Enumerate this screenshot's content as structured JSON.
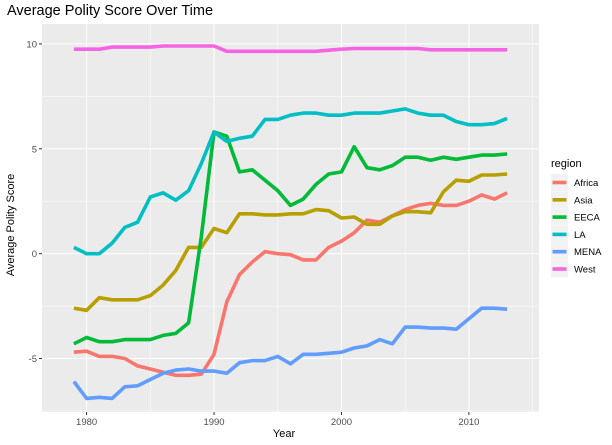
{
  "chart_data": {
    "type": "line",
    "title": "Average Polity Score Over Time",
    "xlabel": "Year",
    "ylabel": "Average Polity Score",
    "xlim": [
      1976.5,
      2015.5
    ],
    "ylim": [
      -7.55,
      10.95
    ],
    "x_ticks": [
      1980,
      1990,
      2000,
      2010
    ],
    "y_ticks": [
      -5,
      0,
      5,
      10
    ],
    "grid": true,
    "legend": {
      "title": "region",
      "position": "right"
    },
    "x": [
      1979,
      1980,
      1981,
      1982,
      1983,
      1984,
      1985,
      1986,
      1987,
      1988,
      1989,
      1990,
      1991,
      1992,
      1993,
      1994,
      1995,
      1996,
      1997,
      1998,
      1999,
      2000,
      2001,
      2002,
      2003,
      2004,
      2005,
      2006,
      2007,
      2008,
      2009,
      2010,
      2011,
      2012,
      2013
    ],
    "series": [
      {
        "name": "Africa",
        "color": "#F8766D",
        "values": [
          -4.7,
          -4.65,
          -4.9,
          -4.9,
          -5.0,
          -5.35,
          -5.5,
          -5.65,
          -5.8,
          -5.8,
          -5.75,
          -4.8,
          -2.3,
          -1.0,
          -0.4,
          0.1,
          0.0,
          -0.05,
          -0.3,
          -0.3,
          0.3,
          0.6,
          1.0,
          1.6,
          1.5,
          1.8,
          2.1,
          2.3,
          2.4,
          2.3,
          2.3,
          2.5,
          2.8,
          2.6,
          2.9
        ]
      },
      {
        "name": "Asia",
        "color": "#B79F00",
        "values": [
          -2.6,
          -2.7,
          -2.1,
          -2.2,
          -2.2,
          -2.2,
          -2.0,
          -1.5,
          -0.8,
          0.3,
          0.3,
          1.2,
          1.0,
          1.9,
          1.9,
          1.85,
          1.85,
          1.9,
          1.9,
          2.1,
          2.05,
          1.7,
          1.75,
          1.4,
          1.4,
          1.8,
          2.0,
          2.0,
          1.95,
          2.95,
          3.5,
          3.45,
          3.75,
          3.75,
          3.8
        ]
      },
      {
        "name": "EECA",
        "color": "#00BA38",
        "values": [
          -4.3,
          -4.0,
          -4.2,
          -4.2,
          -4.1,
          -4.1,
          -4.1,
          -3.9,
          -3.8,
          -3.3,
          0.8,
          5.8,
          5.6,
          3.9,
          4.0,
          3.5,
          3.0,
          2.3,
          2.6,
          3.3,
          3.8,
          3.9,
          5.1,
          4.1,
          4.0,
          4.2,
          4.6,
          4.6,
          4.45,
          4.6,
          4.5,
          4.6,
          4.7,
          4.7,
          4.75
        ]
      },
      {
        "name": "LA",
        "color": "#00BFC4",
        "values": [
          0.3,
          0.0,
          0.0,
          0.5,
          1.25,
          1.5,
          2.7,
          2.9,
          2.55,
          3.0,
          4.3,
          5.8,
          5.35,
          5.5,
          5.6,
          6.4,
          6.4,
          6.6,
          6.7,
          6.7,
          6.6,
          6.6,
          6.7,
          6.7,
          6.7,
          6.8,
          6.9,
          6.7,
          6.6,
          6.6,
          6.3,
          6.15,
          6.15,
          6.2,
          6.45
        ]
      },
      {
        "name": "MENA",
        "color": "#619CFF",
        "values": [
          -6.1,
          -6.9,
          -6.85,
          -6.9,
          -6.35,
          -6.3,
          -6.0,
          -5.7,
          -5.55,
          -5.5,
          -5.6,
          -5.6,
          -5.7,
          -5.2,
          -5.1,
          -5.1,
          -4.9,
          -5.25,
          -4.8,
          -4.8,
          -4.75,
          -4.7,
          -4.5,
          -4.4,
          -4.1,
          -4.3,
          -3.5,
          -3.5,
          -3.55,
          -3.55,
          -3.6,
          -3.1,
          -2.6,
          -2.6,
          -2.65
        ]
      },
      {
        "name": "West",
        "color": "#F564E3",
        "values": [
          9.75,
          9.75,
          9.75,
          9.85,
          9.85,
          9.85,
          9.85,
          9.9,
          9.9,
          9.9,
          9.9,
          9.9,
          9.65,
          9.65,
          9.65,
          9.65,
          9.65,
          9.65,
          9.65,
          9.65,
          9.7,
          9.75,
          9.78,
          9.78,
          9.78,
          9.78,
          9.78,
          9.78,
          9.72,
          9.72,
          9.72,
          9.72,
          9.72,
          9.72,
          9.72
        ]
      }
    ]
  }
}
